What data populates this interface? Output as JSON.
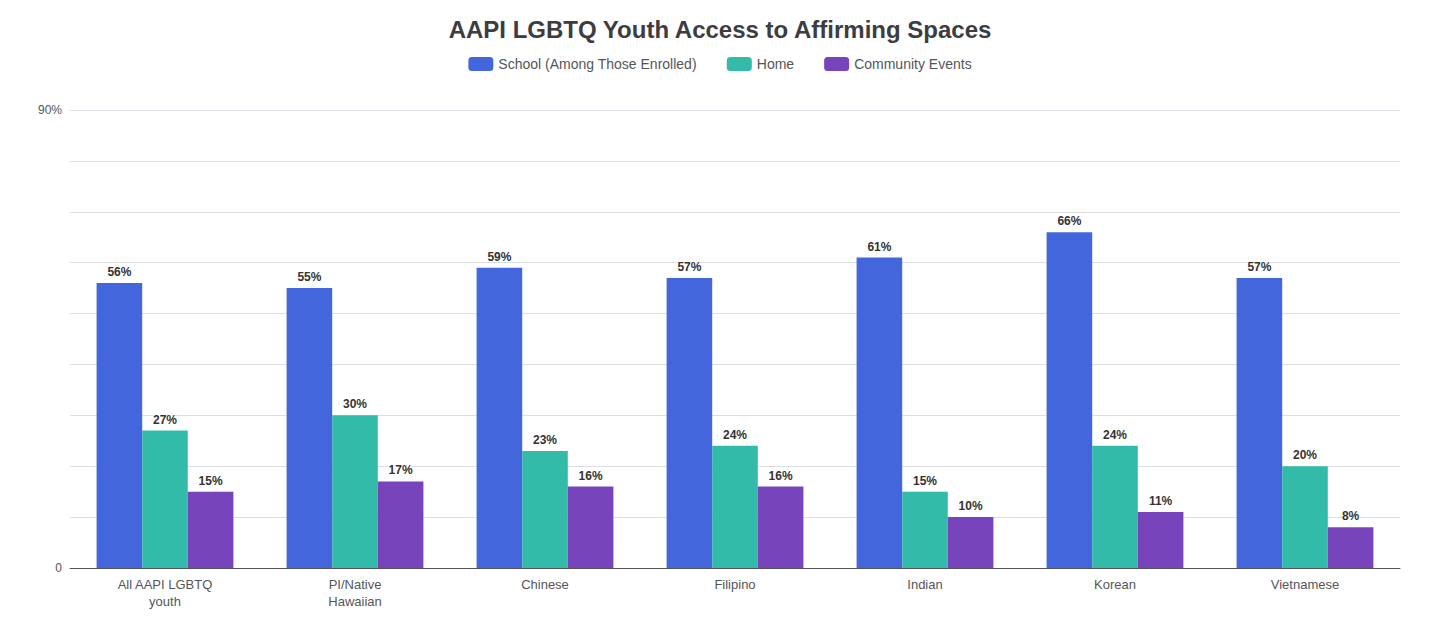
{
  "chart_data": {
    "type": "bar",
    "title": "AAPI LGBTQ Youth Access to Affirming Spaces",
    "categories": [
      "All AAPI LGBTQ\nyouth",
      "PI/Native\nHawaiian",
      "Chinese",
      "Filipino",
      "Indian",
      "Korean",
      "Vietnamese"
    ],
    "series": [
      {
        "name": "School (Among Those Enrolled)",
        "color": "#4466dd",
        "values": [
          56,
          55,
          59,
          57,
          61,
          66,
          57
        ],
        "value_labels": [
          "56%",
          "55%",
          "59%",
          "57%",
          "61%",
          "66%",
          "57%"
        ]
      },
      {
        "name": "Home",
        "color": "#33bbaa",
        "values": [
          27,
          30,
          23,
          24,
          15,
          24,
          20
        ],
        "value_labels": [
          "27%",
          "30%",
          "23%",
          "24%",
          "15%",
          "24%",
          "20%"
        ]
      },
      {
        "name": "Community Events",
        "color": "#7744bb",
        "values": [
          15,
          17,
          16,
          16,
          10,
          11,
          8
        ],
        "value_labels": [
          "15%",
          "17%",
          "16%",
          "16%",
          "10%",
          "11%",
          "8%"
        ]
      }
    ],
    "ylim": [
      0,
      90
    ],
    "yticks": [
      0,
      {
        "value": 10,
        "label": ""
      },
      {
        "value": 20,
        "label": ""
      },
      {
        "value": 30,
        "label": ""
      },
      {
        "value": 40,
        "label": ""
      },
      {
        "value": 50,
        "label": ""
      },
      {
        "value": 60,
        "label": ""
      },
      {
        "value": 70,
        "label": ""
      },
      {
        "value": 80,
        "label": ""
      },
      {
        "value": 90,
        "label": "90%"
      }
    ],
    "grid": true,
    "legend": "top",
    "data_labels": true
  }
}
